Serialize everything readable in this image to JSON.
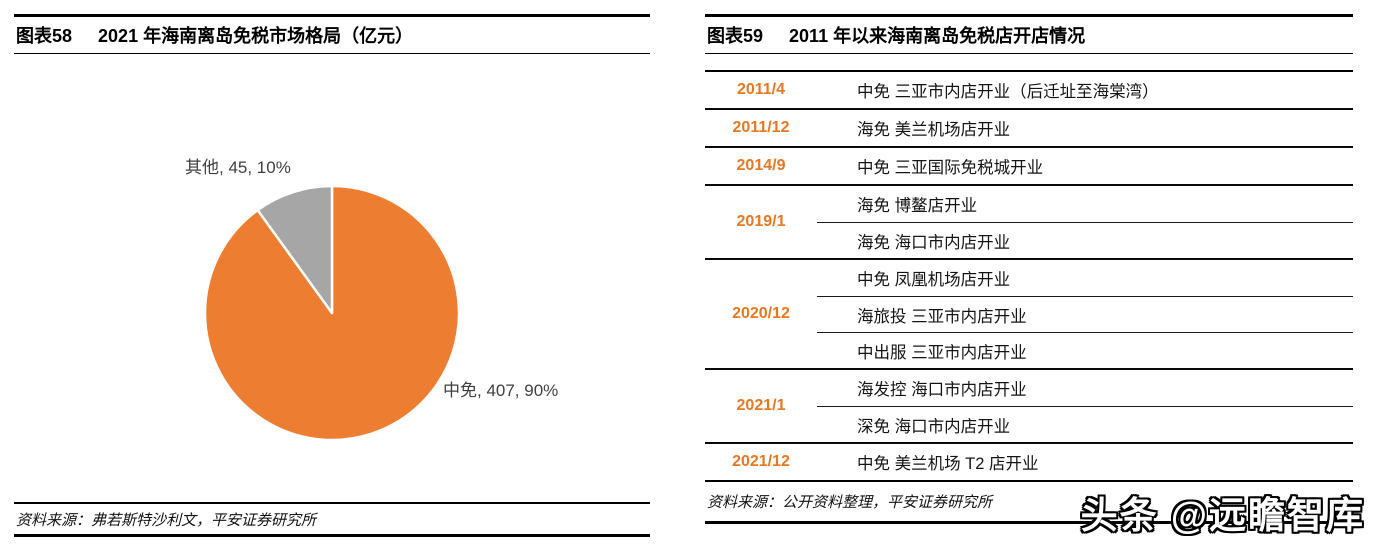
{
  "watermark": {
    "text": "头条 @远瞻智库"
  },
  "colors": {
    "pie_main": "#ED7D31",
    "pie_other": "#A6A6A6",
    "date_orange": "#E87722",
    "rule_black": "#000000"
  },
  "left_panel": {
    "figure_label": "图表58",
    "source": "资料来源：弗若斯特沙利文，平安证券研究所"
  },
  "right_panel": {
    "figure_label": "图表59",
    "source": "资料来源：公开资料整理，平安证券研究所"
  },
  "chart_data": [
    {
      "type": "pie",
      "title": "2021 年海南离岛免税市场格局（亿元）",
      "unit": "亿元",
      "start_angle_deg": 0,
      "direction": "clockwise",
      "label_format": "label, value, percent",
      "slices": [
        {
          "label": "中免",
          "value": 407,
          "percent": "90%",
          "color": "#ED7D31"
        },
        {
          "label": "其他",
          "value": 45,
          "percent": "10%",
          "color": "#A6A6A6"
        }
      ]
    },
    {
      "type": "table",
      "title": "2011 年以来海南离岛免税店开店情况",
      "groups": [
        {
          "date": "2011/4",
          "events": [
            "中免 三亚市内店开业（后迁址至海棠湾）"
          ]
        },
        {
          "date": "2011/12",
          "events": [
            "海免 美兰机场店开业"
          ]
        },
        {
          "date": "2014/9",
          "events": [
            "中免 三亚国际免税城开业"
          ]
        },
        {
          "date": "2019/1",
          "events": [
            "海免 博鳌店开业",
            "海免 海口市内店开业"
          ]
        },
        {
          "date": "2020/12",
          "events": [
            "中免 凤凰机场店开业",
            "海旅投 三亚市内店开业",
            "中出服 三亚市内店开业"
          ]
        },
        {
          "date": "2021/1",
          "events": [
            "海发控 海口市内店开业",
            "深免 海口市内店开业"
          ]
        },
        {
          "date": "2021/12",
          "events": [
            "中免 美兰机场 T2 店开业"
          ]
        }
      ]
    }
  ]
}
